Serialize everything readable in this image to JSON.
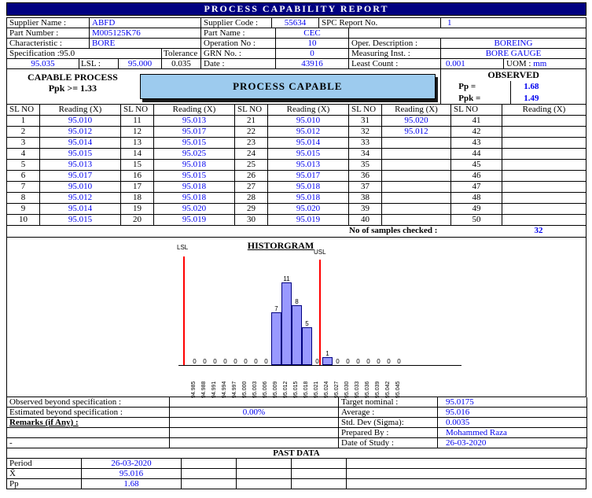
{
  "title": "PROCESS CAPABILITY REPORT",
  "colors": {
    "title_bg": "#000080",
    "title_text": "#FFFFFF",
    "value_text": "#0000EE",
    "banner_bg": "#9DCBEE",
    "bar_fill": "#9999FF",
    "bar_border": "#000080",
    "limit_line": "#FF0000"
  },
  "info": {
    "supplier_name_label": "Supplier Name :",
    "supplier_name": "ABFD",
    "supplier_code_label": "Supplier Code :",
    "supplier_code": "55634",
    "spc_report_no_label": "SPC Report No.",
    "spc_report_no": "1",
    "part_number_label": "Part Number :",
    "part_number": "M005125K76",
    "part_name_label": "Part Name :",
    "part_name": "CEC",
    "characteristic_label": "Characteristic :",
    "characteristic": "BORE",
    "operation_no_label": "Operation No :",
    "operation_no": "10",
    "oper_description_label": "Oper. Description :",
    "oper_description": "BOREING",
    "specification_label": "Specification :95.0",
    "tolerance_label": "Tolerance",
    "grn_no_label": "GRN No. :",
    "grn_no": "0",
    "measuring_inst_label": "Measuring Inst. :",
    "measuring_inst": "BORE GAUGE",
    "usl_value": "95.035",
    "lsl_label": "LSL :",
    "lsl_value": "95.000",
    "tolerance_value": "0.035",
    "date_label": "Date :",
    "date_value": "43916",
    "least_count_label": "Least Count :",
    "least_count": "0.001",
    "uom_label": "UOM :",
    "uom_value": "mm"
  },
  "capability": {
    "capable_process_label": "CAPABLE PROCESS",
    "criteria": "Ppk >= 1.33",
    "banner": "PROCESS CAPABLE",
    "observed_label": "OBSERVED",
    "pp_label": "Pp =",
    "pp_value": "1.68",
    "ppk_label": "Ppk =",
    "ppk_value": "1.49"
  },
  "readings": {
    "col_headers": [
      "SL NO",
      "Reading (X)",
      "SL NO",
      "Reading (X)",
      "SL NO",
      "Reading (X)",
      "SL NO",
      "Reading (X)",
      "SL NO",
      "Reading (X)"
    ],
    "rows": [
      [
        "1",
        "95.010",
        "11",
        "95.013",
        "21",
        "95.010",
        "31",
        "95.020",
        "41",
        ""
      ],
      [
        "2",
        "95.012",
        "12",
        "95.017",
        "22",
        "95.012",
        "32",
        "95.012",
        "42",
        ""
      ],
      [
        "3",
        "95.014",
        "13",
        "95.015",
        "23",
        "95.014",
        "33",
        "",
        "43",
        ""
      ],
      [
        "4",
        "95.015",
        "14",
        "95.025",
        "24",
        "95.015",
        "34",
        "",
        "44",
        ""
      ],
      [
        "5",
        "95.013",
        "15",
        "95.018",
        "25",
        "95.013",
        "35",
        "",
        "45",
        ""
      ],
      [
        "6",
        "95.017",
        "16",
        "95.015",
        "26",
        "95.017",
        "36",
        "",
        "46",
        ""
      ],
      [
        "7",
        "95.010",
        "17",
        "95.018",
        "27",
        "95.018",
        "37",
        "",
        "47",
        ""
      ],
      [
        "8",
        "95.012",
        "18",
        "95.018",
        "28",
        "95.018",
        "38",
        "",
        "48",
        ""
      ],
      [
        "9",
        "95.014",
        "19",
        "95.020",
        "29",
        "95.020",
        "39",
        "",
        "49",
        ""
      ],
      [
        "10",
        "95.015",
        "20",
        "95.019",
        "30",
        "95.019",
        "40",
        "",
        "50",
        ""
      ]
    ]
  },
  "samples": {
    "label": "No of samples checked :",
    "value": "32"
  },
  "chart_data": {
    "type": "bar",
    "title": "HISTORGRAM",
    "categories": [
      "94.985",
      "94.988",
      "94.991",
      "94.994",
      "94.997",
      "95.000",
      "95.003",
      "95.006",
      "95.009",
      "95.012",
      "95.015",
      "95.018",
      "95.021",
      "95.024",
      "95.027",
      "95.030",
      "95.033",
      "95.036",
      "95.039",
      "95.042",
      "95.045"
    ],
    "values": [
      0,
      0,
      0,
      0,
      0,
      0,
      0,
      0,
      7,
      11,
      8,
      5,
      0,
      1,
      0,
      0,
      0,
      0,
      0,
      0,
      0
    ],
    "lsl_label": "LSL",
    "usl_label": "USL",
    "xlabel": "",
    "ylabel": "",
    "ylim": [
      0,
      12
    ],
    "grid": false,
    "legend": false
  },
  "summary": {
    "observed_beyond_label": "Observed beyond specification :",
    "observed_beyond_value": "",
    "estimated_beyond_label": "Estimated beyond specification :",
    "estimated_beyond_value": "0.00%",
    "remarks_label": "Remarks (if Any) :",
    "remarks_value": "-",
    "target_nominal_label": "Target nominal :",
    "target_nominal": "95.0175",
    "average_label": "Average :",
    "average": "95.016",
    "std_dev_label": "Std. Dev (Sigma):",
    "std_dev": "0.0035",
    "prepared_by_label": "Prepared By :",
    "prepared_by": "Mohammed Raza",
    "date_of_study_label": "Date of Study :",
    "date_of_study": "26-03-2020"
  },
  "past_data": {
    "title": "PAST DATA",
    "rows": [
      {
        "label": "Period",
        "value": "26-03-2020"
      },
      {
        "label": "X̄",
        "value": "95.016"
      },
      {
        "label": "Pp",
        "value": "1.68"
      }
    ]
  }
}
